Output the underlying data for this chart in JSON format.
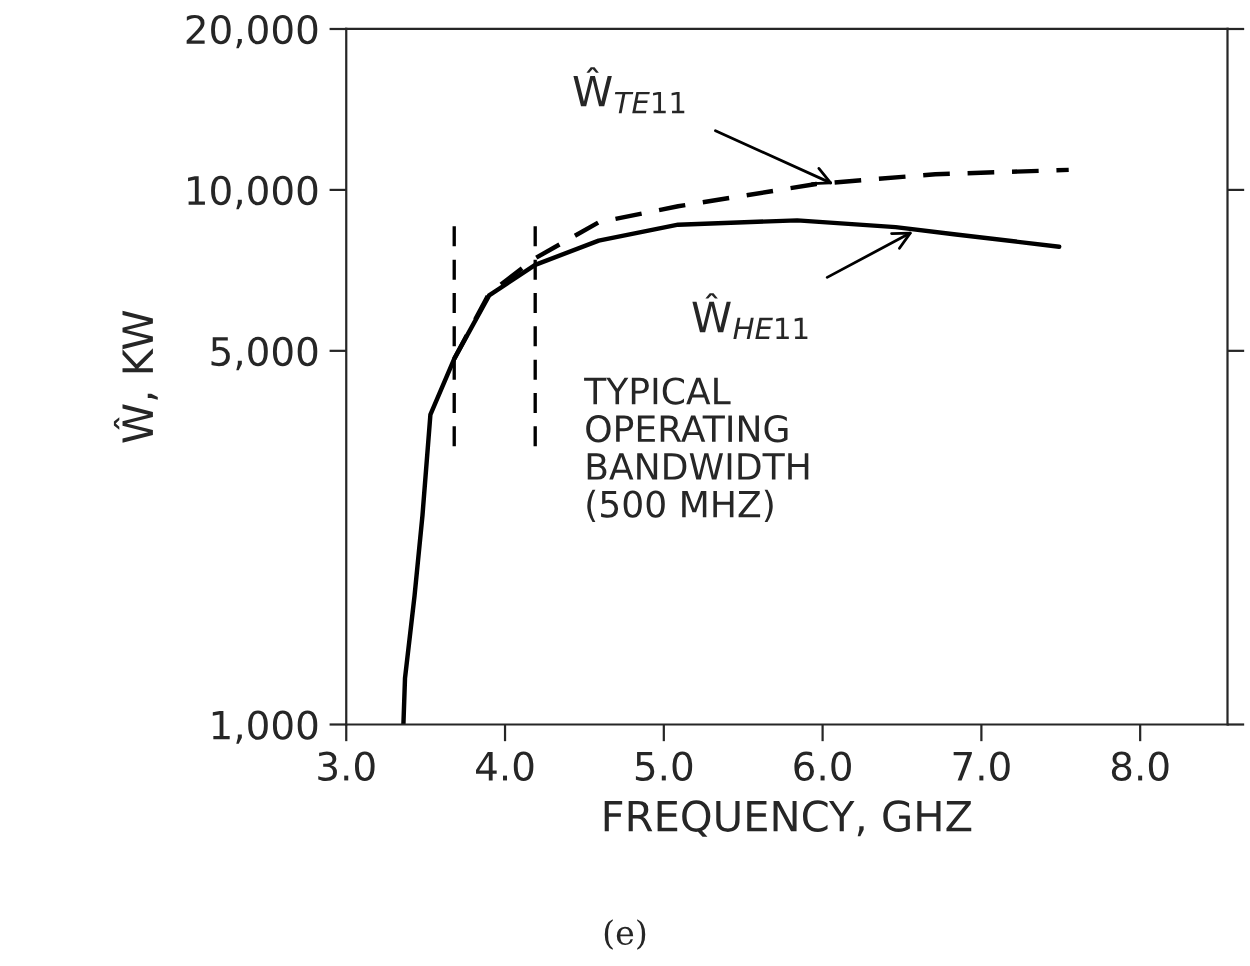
{
  "chart_data": {
    "type": "line",
    "xlabel": "FREQUENCY, GHZ",
    "ylabel": "Ŵ, KW",
    "log": "y",
    "grid": false,
    "xlim": [
      3.0,
      8.55
    ],
    "ylim": [
      1000,
      20000
    ],
    "xticks": [
      {
        "value": 3,
        "label": "3.0"
      },
      {
        "value": 4,
        "label": "4.0"
      },
      {
        "value": 5,
        "label": "5.0"
      },
      {
        "value": 6,
        "label": "6.0"
      },
      {
        "value": 7,
        "label": "7.0"
      },
      {
        "value": 8,
        "label": "8.0"
      }
    ],
    "yticks": [
      {
        "value": 1000,
        "label": "1,000"
      },
      {
        "value": 5000,
        "label": "5,000"
      },
      {
        "value": 10000,
        "label": "10,000"
      },
      {
        "value": 20000,
        "label": "20,000"
      }
    ],
    "series": [
      {
        "color": "#000000",
        "line_style": "solid",
        "x": [
          3.36,
          3.37,
          3.43,
          3.48,
          3.53,
          3.68,
          3.9,
          4.19,
          4.59,
          5.09,
          5.84,
          6.46,
          6.84,
          7.49
        ],
        "values": [
          1000,
          1220,
          1740,
          2460,
          3800,
          4830,
          6350,
          7240,
          8040,
          8610,
          8770,
          8520,
          8250,
          7830
        ]
      },
      {
        "color": "#000000",
        "line_style": "dashed",
        "x": [
          3.68,
          3.9,
          4.19,
          4.59,
          5.09,
          5.96,
          6.71,
          7.55
        ],
        "values": [
          4830,
          6400,
          7450,
          8700,
          9320,
          10260,
          10700,
          10900
        ]
      }
    ],
    "ref_lines": [
      {
        "axis": "x",
        "value": 3.68,
        "line_style": "dashed",
        "color": "#000000"
      },
      {
        "axis": "x",
        "value": 4.19,
        "line_style": "dashed",
        "color": "#000000"
      }
    ],
    "annotations": [
      {
        "text": "Ŵ$_{TE11}$",
        "x": 6.1,
        "y": 10150
      },
      {
        "text": "Ŵ$_{HE11}$",
        "x": 6.6,
        "y": 8450
      },
      "TYPICAL\nOPERATING\nBANDWIDTH\n(500 MHZ)",
      "(e)"
    ]
  }
}
